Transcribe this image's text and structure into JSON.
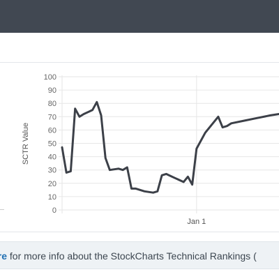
{
  "colors": {
    "header_bg": "#414852",
    "line": "#3c4048",
    "grid": "#e6e6e6",
    "link": "#1f6fb2",
    "footer_bg": "#eef2f5"
  },
  "chart_data": {
    "type": "line",
    "ylabel": "SCTR Value",
    "ylim": [
      0,
      100
    ],
    "yticks": [
      "0",
      "10",
      "20",
      "30",
      "40",
      "50",
      "60",
      "70",
      "80",
      "90",
      "100"
    ],
    "xticks": [
      {
        "label": "Jan 1",
        "x": 31
      }
    ],
    "xlim": [
      0,
      50
    ],
    "grid": true,
    "series": [
      {
        "points": [
          [
            0,
            47
          ],
          [
            1,
            28
          ],
          [
            2,
            29
          ],
          [
            3,
            76
          ],
          [
            4,
            70
          ],
          [
            5,
            72
          ],
          [
            7,
            75
          ],
          [
            8,
            81
          ],
          [
            9,
            71
          ],
          [
            10,
            39
          ],
          [
            11,
            30
          ],
          [
            13,
            31
          ],
          [
            14,
            30
          ],
          [
            15,
            32
          ],
          [
            16,
            16
          ],
          [
            17,
            16
          ],
          [
            19,
            14
          ],
          [
            21,
            13
          ],
          [
            22,
            14
          ],
          [
            23,
            26
          ],
          [
            24,
            27
          ],
          [
            26,
            24
          ],
          [
            28,
            21
          ],
          [
            29,
            25
          ],
          [
            30,
            19
          ],
          [
            31,
            46
          ],
          [
            33,
            58
          ],
          [
            35,
            66
          ],
          [
            36,
            70
          ],
          [
            37,
            62
          ],
          [
            38,
            63
          ],
          [
            39,
            65
          ],
          [
            42,
            67
          ],
          [
            45,
            69
          ],
          [
            48,
            71
          ],
          [
            50,
            72
          ]
        ]
      }
    ]
  },
  "footer": {
    "link_text": "ere",
    "text": " for more info about the StockCharts Technical Rankings ("
  }
}
